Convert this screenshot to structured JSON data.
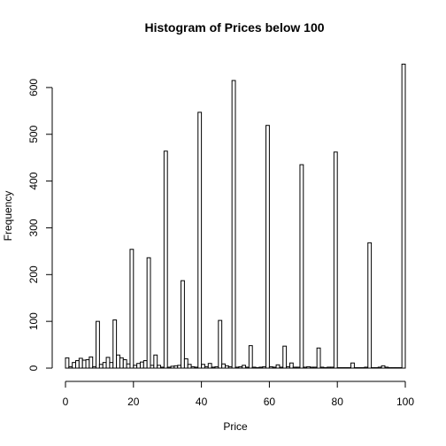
{
  "chart_data": {
    "type": "bar",
    "title": "Histogram of Prices below 100",
    "xlabel": "Price",
    "ylabel": "Frequency",
    "xlim": [
      0,
      100
    ],
    "ylim": [
      0,
      650
    ],
    "bin_width": 1,
    "x_ticks": [
      0,
      20,
      40,
      60,
      80,
      100
    ],
    "y_ticks": [
      0,
      100,
      200,
      300,
      400,
      500,
      600
    ],
    "bin_starts": [
      0,
      1,
      2,
      3,
      4,
      5,
      6,
      7,
      8,
      9,
      10,
      11,
      12,
      13,
      14,
      15,
      16,
      17,
      18,
      19,
      20,
      21,
      22,
      23,
      24,
      25,
      26,
      27,
      28,
      29,
      30,
      31,
      32,
      33,
      34,
      35,
      36,
      37,
      38,
      39,
      40,
      41,
      42,
      43,
      44,
      45,
      46,
      47,
      48,
      49,
      50,
      51,
      52,
      53,
      54,
      55,
      56,
      57,
      58,
      59,
      60,
      61,
      62,
      63,
      64,
      65,
      66,
      67,
      68,
      69,
      70,
      71,
      72,
      73,
      74,
      75,
      76,
      77,
      78,
      79,
      80,
      81,
      82,
      83,
      84,
      85,
      86,
      87,
      88,
      89,
      90,
      91,
      92,
      93,
      94,
      95,
      96,
      97,
      98,
      99
    ],
    "values": [
      22,
      3,
      12,
      16,
      21,
      17,
      18,
      24,
      3,
      100,
      8,
      12,
      23,
      12,
      103,
      28,
      22,
      18,
      9,
      254,
      6,
      10,
      13,
      16,
      236,
      6,
      28,
      6,
      2,
      464,
      2,
      4,
      5,
      6,
      187,
      20,
      8,
      3,
      2,
      547,
      8,
      3,
      10,
      2,
      3,
      102,
      9,
      5,
      3,
      615,
      2,
      3,
      6,
      2,
      48,
      2,
      1,
      2,
      3,
      519,
      3,
      2,
      7,
      2,
      47,
      3,
      11,
      2,
      2,
      435,
      2,
      3,
      2,
      2,
      43,
      2,
      1,
      2,
      2,
      462,
      1,
      1,
      1,
      1,
      11,
      1,
      1,
      1,
      2,
      268,
      1,
      1,
      2,
      5,
      2,
      1,
      1,
      1,
      1,
      650
    ]
  }
}
